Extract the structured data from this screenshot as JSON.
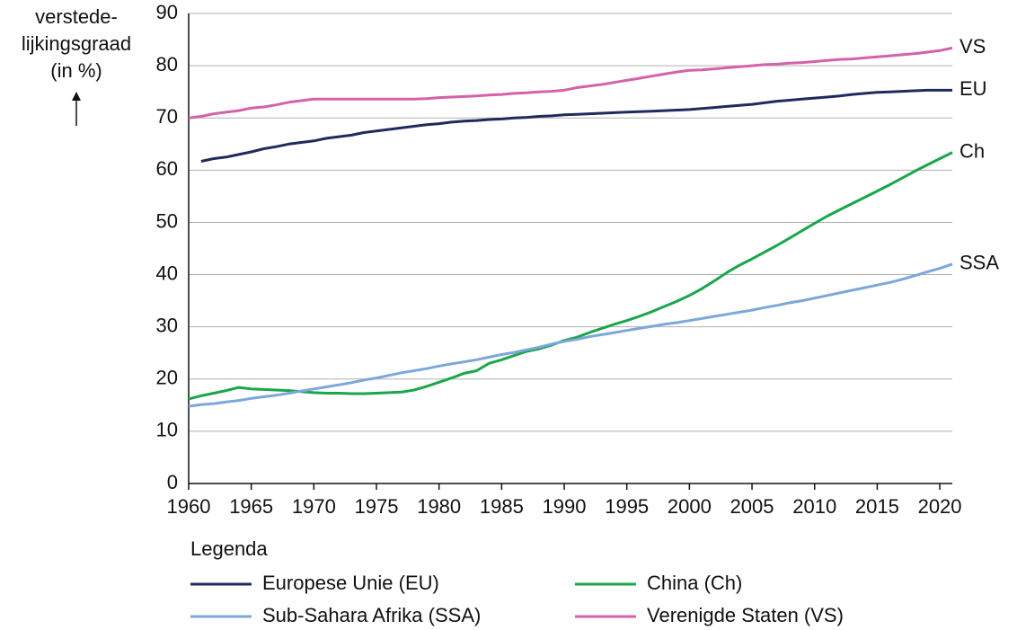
{
  "chart_data": {
    "type": "line",
    "ylabel_lines": [
      "verstede-",
      "lijkingsgraad",
      "(in %)"
    ],
    "legend_title": "Legenda",
    "x": [
      1960,
      1961,
      1962,
      1963,
      1964,
      1965,
      1966,
      1967,
      1968,
      1969,
      1970,
      1971,
      1972,
      1973,
      1974,
      1975,
      1976,
      1977,
      1978,
      1979,
      1980,
      1981,
      1982,
      1983,
      1984,
      1985,
      1986,
      1987,
      1988,
      1989,
      1990,
      1991,
      1992,
      1993,
      1994,
      1995,
      1996,
      1997,
      1998,
      1999,
      2000,
      2001,
      2002,
      2003,
      2004,
      2005,
      2006,
      2007,
      2008,
      2009,
      2010,
      2011,
      2012,
      2013,
      2014,
      2015,
      2016,
      2017,
      2018,
      2019,
      2020,
      2021
    ],
    "xlim": [
      1960,
      2021
    ],
    "xticks": [
      1960,
      1965,
      1970,
      1975,
      1980,
      1985,
      1990,
      1995,
      2000,
      2005,
      2010,
      2015,
      2020
    ],
    "ylim": [
      0,
      90
    ],
    "yticks": [
      0,
      10,
      20,
      30,
      40,
      50,
      60,
      70,
      80,
      90
    ],
    "grid": true,
    "series": [
      {
        "name": "Europese Unie (EU)",
        "end_label": "EU",
        "color": "#1f2a5e",
        "values": [
          null,
          61.7,
          62.2,
          62.5,
          63.0,
          63.5,
          64.1,
          64.5,
          65.0,
          65.3,
          65.6,
          66.1,
          66.4,
          66.7,
          67.2,
          67.5,
          67.8,
          68.1,
          68.4,
          68.7,
          68.9,
          69.2,
          69.4,
          69.5,
          69.7,
          69.8,
          70.0,
          70.1,
          70.3,
          70.4,
          70.6,
          70.7,
          70.8,
          70.9,
          71.0,
          71.1,
          71.2,
          71.3,
          71.4,
          71.5,
          71.6,
          71.8,
          72.0,
          72.2,
          72.4,
          72.6,
          72.9,
          73.2,
          73.4,
          73.6,
          73.8,
          74.0,
          74.2,
          74.5,
          74.7,
          74.9,
          75.0,
          75.1,
          75.2,
          75.3,
          75.3,
          75.3
        ]
      },
      {
        "name": "China (Ch)",
        "end_label": "Ch",
        "color": "#1aa64a",
        "values": [
          16.2,
          16.8,
          17.3,
          17.8,
          18.4,
          18.1,
          18.0,
          17.9,
          17.8,
          17.6,
          17.4,
          17.3,
          17.3,
          17.2,
          17.2,
          17.3,
          17.4,
          17.5,
          17.9,
          18.6,
          19.4,
          20.2,
          21.1,
          21.6,
          23.0,
          23.7,
          24.5,
          25.3,
          25.8,
          26.5,
          27.4,
          28.0,
          28.9,
          29.7,
          30.5,
          31.2,
          32.0,
          32.9,
          33.9,
          34.9,
          36.0,
          37.3,
          38.8,
          40.4,
          41.8,
          43.0,
          44.3,
          45.6,
          47.0,
          48.4,
          49.8,
          51.2,
          52.4,
          53.6,
          54.8,
          56.0,
          57.2,
          58.5,
          59.8,
          61.0,
          62.2,
          63.4
        ]
      },
      {
        "name": "Sub-Sahara Afrika (SSA)",
        "end_label": "SSA",
        "color": "#7ba7dc",
        "values": [
          14.8,
          15.1,
          15.3,
          15.6,
          15.9,
          16.3,
          16.6,
          16.9,
          17.3,
          17.7,
          18.1,
          18.5,
          18.9,
          19.3,
          19.8,
          20.2,
          20.7,
          21.2,
          21.6,
          22.0,
          22.5,
          22.9,
          23.3,
          23.7,
          24.2,
          24.7,
          25.1,
          25.6,
          26.1,
          26.7,
          27.2,
          27.6,
          28.1,
          28.5,
          28.9,
          29.3,
          29.7,
          30.1,
          30.5,
          30.8,
          31.2,
          31.6,
          32.0,
          32.4,
          32.8,
          33.2,
          33.7,
          34.1,
          34.6,
          35.0,
          35.5,
          36.0,
          36.5,
          37.0,
          37.5,
          38.0,
          38.5,
          39.1,
          39.8,
          40.5,
          41.2,
          42.0
        ]
      },
      {
        "name": "Verenigde Staten (VS)",
        "end_label": "VS",
        "color": "#d462a8",
        "values": [
          70.0,
          70.3,
          70.8,
          71.1,
          71.4,
          71.9,
          72.1,
          72.5,
          73.0,
          73.3,
          73.6,
          73.6,
          73.6,
          73.6,
          73.6,
          73.6,
          73.6,
          73.6,
          73.6,
          73.7,
          73.9,
          74.0,
          74.1,
          74.2,
          74.4,
          74.5,
          74.7,
          74.8,
          75.0,
          75.1,
          75.3,
          75.8,
          76.1,
          76.4,
          76.8,
          77.2,
          77.6,
          78.0,
          78.4,
          78.8,
          79.1,
          79.2,
          79.4,
          79.6,
          79.8,
          80.0,
          80.2,
          80.3,
          80.5,
          80.6,
          80.8,
          81.0,
          81.2,
          81.3,
          81.5,
          81.7,
          81.9,
          82.1,
          82.3,
          82.6,
          82.9,
          83.4
        ]
      }
    ]
  }
}
